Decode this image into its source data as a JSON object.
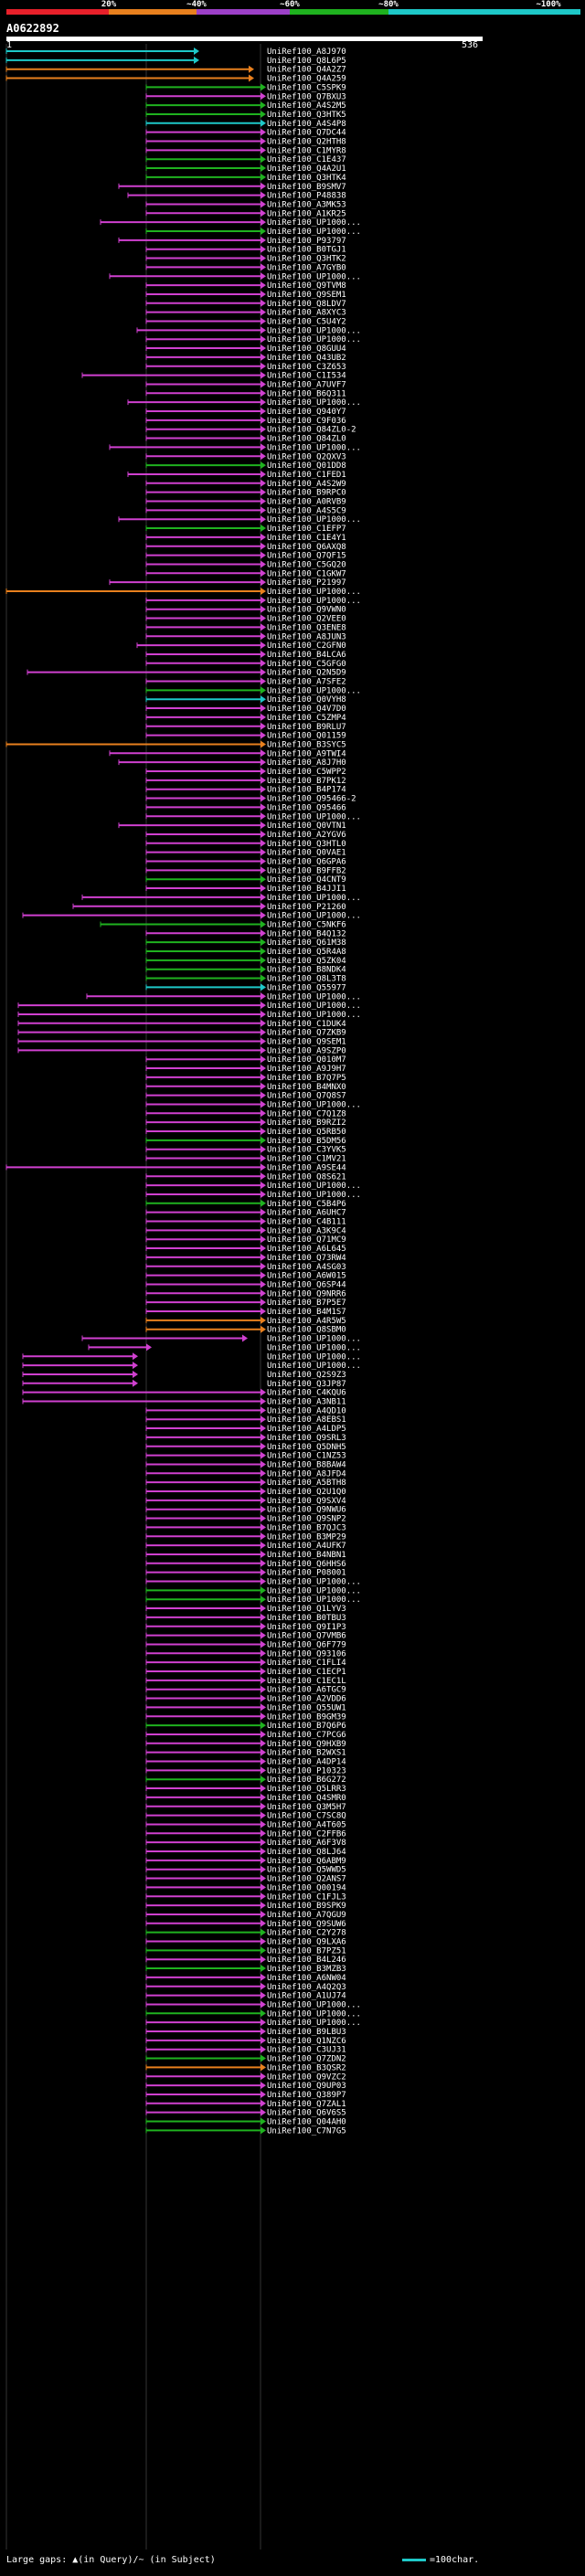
{
  "legend": {
    "labels": [
      "20%",
      "~40%",
      "~60%",
      "~80%",
      "~100%"
    ],
    "colors": [
      "#e8202a",
      "#e8801e",
      "#9d40c8",
      "#1fb21f",
      "#1ec8c8"
    ]
  },
  "query": {
    "name": "A0622892",
    "start": "1",
    "end": "536"
  },
  "hits": [
    {
      "id": "UniRef100_A8J970",
      "color": "#1ec8c8"
    },
    {
      "id": "UniRef100_Q8L6P5",
      "color": "#1ec8c8"
    },
    {
      "id": "UniRef100_Q4A2Z7",
      "color": "#e8801e"
    },
    {
      "id": "UniRef100_Q4A259",
      "color": "#e8801e"
    },
    {
      "id": "UniRef100_C5SPK9",
      "color": "#1fb21f"
    },
    {
      "id": "UniRef100_Q7BXU3",
      "color": "#d040d0"
    },
    {
      "id": "UniRef100_A4S2M5",
      "color": "#1fb21f"
    },
    {
      "id": "UniRef100_Q3HTK5",
      "color": "#1fb21f"
    },
    {
      "id": "UniRef100_A4S4P8",
      "color": "#1ec8c8"
    },
    {
      "id": "UniRef100_Q7DC44",
      "color": "#d040d0"
    },
    {
      "id": "UniRef100_Q2HTH8",
      "color": "#d040d0"
    },
    {
      "id": "UniRef100_C1MYR8",
      "color": "#d040d0"
    },
    {
      "id": "UniRef100_C1E437",
      "color": "#1fb21f"
    },
    {
      "id": "UniRef100_Q4A2U1",
      "color": "#1fb21f"
    },
    {
      "id": "UniRef100_Q3HTK4",
      "color": "#1fb21f"
    },
    {
      "id": "UniRef100_B9SMV7",
      "color": "#d040d0"
    },
    {
      "id": "UniRef100_P48838",
      "color": "#d040d0"
    },
    {
      "id": "UniRef100_A3MK53",
      "color": "#d040d0"
    },
    {
      "id": "UniRef100_A1KR25",
      "color": "#d040d0"
    },
    {
      "id": "UniRef100_UP1000...",
      "color": "#d040d0"
    },
    {
      "id": "UniRef100_UP1000...",
      "color": "#1fb21f"
    },
    {
      "id": "UniRef100_P93797",
      "color": "#d040d0"
    },
    {
      "id": "UniRef100_B0TGJ1",
      "color": "#d040d0"
    },
    {
      "id": "UniRef100_Q3HTK2",
      "color": "#d040d0"
    },
    {
      "id": "UniRef100_A7GYB0",
      "color": "#d040d0"
    },
    {
      "id": "UniRef100_UP1000...",
      "color": "#d040d0"
    },
    {
      "id": "UniRef100_Q9TVM8",
      "color": "#d040d0"
    },
    {
      "id": "UniRef100_Q9SEM1",
      "color": "#d040d0"
    },
    {
      "id": "UniRef100_Q8LDV7",
      "color": "#d040d0"
    },
    {
      "id": "UniRef100_A8XYC3",
      "color": "#d040d0"
    },
    {
      "id": "UniRef100_C5U4Y2",
      "color": "#d040d0"
    },
    {
      "id": "UniRef100_UP1000...",
      "color": "#d040d0"
    },
    {
      "id": "UniRef100_UP1000...",
      "color": "#d040d0"
    },
    {
      "id": "UniRef100_Q8GUU4",
      "color": "#d040d0"
    },
    {
      "id": "UniRef100_Q43UB2",
      "color": "#d040d0"
    },
    {
      "id": "UniRef100_C3Z653",
      "color": "#d040d0"
    },
    {
      "id": "UniRef100_C1I534",
      "color": "#d040d0"
    },
    {
      "id": "UniRef100_A7UVF7",
      "color": "#d040d0"
    },
    {
      "id": "UniRef100_B6Q311",
      "color": "#d040d0"
    },
    {
      "id": "UniRef100_UP1000...",
      "color": "#d040d0"
    },
    {
      "id": "UniRef100_Q940Y7",
      "color": "#d040d0"
    },
    {
      "id": "UniRef100_C9F036",
      "color": "#d040d0"
    },
    {
      "id": "UniRef100_Q84ZL0-2",
      "color": "#d040d0"
    },
    {
      "id": "UniRef100_Q84ZL0",
      "color": "#d040d0"
    },
    {
      "id": "UniRef100_UP1000...",
      "color": "#d040d0"
    },
    {
      "id": "UniRef100_Q2QXV3",
      "color": "#d040d0"
    },
    {
      "id": "UniRef100_Q01DD8",
      "color": "#1fb21f"
    },
    {
      "id": "UniRef100_C1FED1",
      "color": "#d040d0"
    },
    {
      "id": "UniRef100_A4S2W9",
      "color": "#d040d0"
    },
    {
      "id": "UniRef100_B9RPC0",
      "color": "#d040d0"
    },
    {
      "id": "UniRef100_A0RVB9",
      "color": "#d040d0"
    },
    {
      "id": "UniRef100_A4S5C9",
      "color": "#d040d0"
    },
    {
      "id": "UniRef100_UP1000...",
      "color": "#d040d0"
    },
    {
      "id": "UniRef100_C1EFP7",
      "color": "#1fb21f"
    },
    {
      "id": "UniRef100_C1E4Y1",
      "color": "#d040d0"
    },
    {
      "id": "UniRef100_Q6AXQ8",
      "color": "#d040d0"
    },
    {
      "id": "UniRef100_Q7QF15",
      "color": "#d040d0"
    },
    {
      "id": "UniRef100_C5GQ20",
      "color": "#d040d0"
    },
    {
      "id": "UniRef100_C1GKW7",
      "color": "#d040d0"
    },
    {
      "id": "UniRef100_P21997",
      "color": "#d040d0"
    },
    {
      "id": "UniRef100_UP1000...",
      "color": "#e8801e"
    },
    {
      "id": "UniRef100_UP1000...",
      "color": "#d040d0"
    },
    {
      "id": "UniRef100_Q9VWN0",
      "color": "#d040d0"
    },
    {
      "id": "UniRef100_Q2VEE0",
      "color": "#d040d0"
    },
    {
      "id": "UniRef100_Q3ENE8",
      "color": "#d040d0"
    },
    {
      "id": "UniRef100_A8JUN3",
      "color": "#d040d0"
    },
    {
      "id": "UniRef100_C2GFN0",
      "color": "#d040d0"
    },
    {
      "id": "UniRef100_B4LCA6",
      "color": "#d040d0"
    },
    {
      "id": "UniRef100_C5GFG0",
      "color": "#d040d0"
    },
    {
      "id": "UniRef100_Q2N5D9",
      "color": "#d040d0"
    },
    {
      "id": "UniRef100_A7SFE2",
      "color": "#d040d0"
    },
    {
      "id": "UniRef100_UP1000...",
      "color": "#1fb21f"
    },
    {
      "id": "UniRef100_Q0VYH8",
      "color": "#1ec8c8"
    },
    {
      "id": "UniRef100_Q4V7D0",
      "color": "#d040d0"
    },
    {
      "id": "UniRef100_C5ZMP4",
      "color": "#d040d0"
    },
    {
      "id": "UniRef100_B9RLU7",
      "color": "#d040d0"
    },
    {
      "id": "UniRef100_Q01159",
      "color": "#d040d0"
    },
    {
      "id": "UniRef100_B3SYC5",
      "color": "#e8801e"
    },
    {
      "id": "UniRef100_A9TWI4",
      "color": "#d040d0"
    },
    {
      "id": "UniRef100_A8J7H0",
      "color": "#d040d0"
    },
    {
      "id": "UniRef100_C5WPP2",
      "color": "#d040d0"
    },
    {
      "id": "UniRef100_B7PK12",
      "color": "#d040d0"
    },
    {
      "id": "UniRef100_B4P174",
      "color": "#d040d0"
    },
    {
      "id": "UniRef100_Q95466-2",
      "color": "#d040d0"
    },
    {
      "id": "UniRef100_Q95466",
      "color": "#d040d0"
    },
    {
      "id": "UniRef100_UP1000...",
      "color": "#d040d0"
    },
    {
      "id": "UniRef100_Q0VTN1",
      "color": "#d040d0"
    },
    {
      "id": "UniRef100_A2YGV6",
      "color": "#d040d0"
    },
    {
      "id": "UniRef100_Q3HTL0",
      "color": "#d040d0"
    },
    {
      "id": "UniRef100_Q0VAE1",
      "color": "#d040d0"
    },
    {
      "id": "UniRef100_Q6GPA6",
      "color": "#d040d0"
    },
    {
      "id": "UniRef100_B9FFB2",
      "color": "#d040d0"
    },
    {
      "id": "UniRef100_Q4CNT9",
      "color": "#1fb21f"
    },
    {
      "id": "UniRef100_B4JJI1",
      "color": "#d040d0"
    },
    {
      "id": "UniRef100_UP1000...",
      "color": "#d040d0"
    },
    {
      "id": "UniRef100_P21260",
      "color": "#d040d0"
    },
    {
      "id": "UniRef100_UP1000...",
      "color": "#d040d0"
    },
    {
      "id": "UniRef100_C5NKF6",
      "color": "#1fb21f"
    },
    {
      "id": "UniRef100_B4Q132",
      "color": "#d040d0"
    },
    {
      "id": "UniRef100_Q61M38",
      "color": "#1fb21f"
    },
    {
      "id": "UniRef100_Q5R4A8",
      "color": "#1fb21f"
    },
    {
      "id": "UniRef100_Q5ZK04",
      "color": "#1fb21f"
    },
    {
      "id": "UniRef100_B8NDK4",
      "color": "#1fb21f"
    },
    {
      "id": "UniRef100_Q8L3T8",
      "color": "#1fb21f"
    },
    {
      "id": "UniRef100_Q55977",
      "color": "#1ec8c8"
    },
    {
      "id": "UniRef100_UP1000...",
      "color": "#d040d0"
    },
    {
      "id": "UniRef100_UP1000...",
      "color": "#d040d0"
    },
    {
      "id": "UniRef100_UP1000...",
      "color": "#d040d0"
    },
    {
      "id": "UniRef100_C1DUK4",
      "color": "#d040d0"
    },
    {
      "id": "UniRef100_Q7ZKB9",
      "color": "#d040d0"
    },
    {
      "id": "UniRef100_Q9SEM1",
      "color": "#d040d0"
    },
    {
      "id": "UniRef100_A9SZP0",
      "color": "#d040d0"
    },
    {
      "id": "UniRef100_Q010M7",
      "color": "#d040d0"
    },
    {
      "id": "UniRef100_A9J9H7",
      "color": "#d040d0"
    },
    {
      "id": "UniRef100_B7Q7P5",
      "color": "#d040d0"
    },
    {
      "id": "UniRef100_B4MNX0",
      "color": "#d040d0"
    },
    {
      "id": "UniRef100_Q7Q8S7",
      "color": "#d040d0"
    },
    {
      "id": "UniRef100_UP1000...",
      "color": "#d040d0"
    },
    {
      "id": "UniRef100_C7Q1Z8",
      "color": "#d040d0"
    },
    {
      "id": "UniRef100_B9RZI2",
      "color": "#d040d0"
    },
    {
      "id": "UniRef100_Q5RB50",
      "color": "#d040d0"
    },
    {
      "id": "UniRef100_B5DM56",
      "color": "#1fb21f"
    },
    {
      "id": "UniRef100_C3YVK5",
      "color": "#d040d0"
    },
    {
      "id": "UniRef100_C1MV21",
      "color": "#d040d0"
    },
    {
      "id": "UniRef100_A9SE44",
      "color": "#d040d0"
    },
    {
      "id": "UniRef100_Q8S621",
      "color": "#d040d0"
    },
    {
      "id": "UniRef100_UP1000...",
      "color": "#d040d0"
    },
    {
      "id": "UniRef100_UP1000...",
      "color": "#d040d0"
    },
    {
      "id": "UniRef100_C5B4P6",
      "color": "#1fb21f"
    },
    {
      "id": "UniRef100_A6UHC7",
      "color": "#d040d0"
    },
    {
      "id": "UniRef100_C4B111",
      "color": "#d040d0"
    },
    {
      "id": "UniRef100_A3K9C4",
      "color": "#d040d0"
    },
    {
      "id": "UniRef100_Q71MC9",
      "color": "#d040d0"
    },
    {
      "id": "UniRef100_A6L645",
      "color": "#d040d0"
    },
    {
      "id": "UniRef100_Q73RW4",
      "color": "#d040d0"
    },
    {
      "id": "UniRef100_A4SG03",
      "color": "#d040d0"
    },
    {
      "id": "UniRef100_A6W015",
      "color": "#d040d0"
    },
    {
      "id": "UniRef100_Q6SP44",
      "color": "#d040d0"
    },
    {
      "id": "UniRef100_Q9NRR6",
      "color": "#d040d0"
    },
    {
      "id": "UniRef100_B7P5E7",
      "color": "#d040d0"
    },
    {
      "id": "UniRef100_B4M1S7",
      "color": "#d040d0"
    },
    {
      "id": "UniRef100_A4R5W5",
      "color": "#e8801e"
    },
    {
      "id": "UniRef100_Q8SBM0",
      "color": "#e8801e"
    },
    {
      "id": "UniRef100_UP1000...",
      "color": "#d040d0"
    },
    {
      "id": "UniRef100_UP1000...",
      "color": "#d040d0"
    },
    {
      "id": "UniRef100_UP1000...",
      "color": "#d040d0"
    },
    {
      "id": "UniRef100_UP1000...",
      "color": "#d040d0"
    },
    {
      "id": "UniRef100_Q2S9Z3",
      "color": "#d040d0"
    },
    {
      "id": "UniRef100_Q3JP87",
      "color": "#d040d0"
    },
    {
      "id": "UniRef100_C4KQU6",
      "color": "#d040d0"
    },
    {
      "id": "UniRef100_A3NB11",
      "color": "#d040d0"
    },
    {
      "id": "UniRef100_A4QD10",
      "color": "#d040d0"
    },
    {
      "id": "UniRef100_A8EBS1",
      "color": "#d040d0"
    },
    {
      "id": "UniRef100_A4LDP5",
      "color": "#d040d0"
    },
    {
      "id": "UniRef100_Q9SRL3",
      "color": "#d040d0"
    },
    {
      "id": "UniRef100_Q5DNH5",
      "color": "#d040d0"
    },
    {
      "id": "UniRef100_C1NZ53",
      "color": "#d040d0"
    },
    {
      "id": "UniRef100_B8BAW4",
      "color": "#d040d0"
    },
    {
      "id": "UniRef100_A8JFD4",
      "color": "#d040d0"
    },
    {
      "id": "UniRef100_A5BTH8",
      "color": "#d040d0"
    },
    {
      "id": "UniRef100_Q2U1Q0",
      "color": "#d040d0"
    },
    {
      "id": "UniRef100_Q9SXV4",
      "color": "#d040d0"
    },
    {
      "id": "UniRef100_Q9NWU6",
      "color": "#d040d0"
    },
    {
      "id": "UniRef100_Q9SNP2",
      "color": "#d040d0"
    },
    {
      "id": "UniRef100_B7QJC3",
      "color": "#d040d0"
    },
    {
      "id": "UniRef100_B3MP29",
      "color": "#d040d0"
    },
    {
      "id": "UniRef100_A4UFK7",
      "color": "#d040d0"
    },
    {
      "id": "UniRef100_B4NBN1",
      "color": "#d040d0"
    },
    {
      "id": "UniRef100_Q6HHS6",
      "color": "#d040d0"
    },
    {
      "id": "UniRef100_P08001",
      "color": "#d040d0"
    },
    {
      "id": "UniRef100_UP1000...",
      "color": "#d040d0"
    },
    {
      "id": "UniRef100_UP1000...",
      "color": "#1fb21f"
    },
    {
      "id": "UniRef100_UP1000...",
      "color": "#1fb21f"
    },
    {
      "id": "UniRef100_Q1LYV3",
      "color": "#d040d0"
    },
    {
      "id": "UniRef100_B0TBU3",
      "color": "#d040d0"
    },
    {
      "id": "UniRef100_Q9I1P3",
      "color": "#d040d0"
    },
    {
      "id": "UniRef100_Q7VMB6",
      "color": "#d040d0"
    },
    {
      "id": "UniRef100_Q6F779",
      "color": "#d040d0"
    },
    {
      "id": "UniRef100_Q93106",
      "color": "#d040d0"
    },
    {
      "id": "UniRef100_C1FLI4",
      "color": "#d040d0"
    },
    {
      "id": "UniRef100_C1ECP1",
      "color": "#d040d0"
    },
    {
      "id": "UniRef100_C1EC1L",
      "color": "#d040d0"
    },
    {
      "id": "UniRef100_A6TGC9",
      "color": "#d040d0"
    },
    {
      "id": "UniRef100_A2VDD6",
      "color": "#d040d0"
    },
    {
      "id": "UniRef100_Q55UW1",
      "color": "#d040d0"
    },
    {
      "id": "UniRef100_B9GM39",
      "color": "#d040d0"
    },
    {
      "id": "UniRef100_B7Q6P6",
      "color": "#1fb21f"
    },
    {
      "id": "UniRef100_C7PCG6",
      "color": "#d040d0"
    },
    {
      "id": "UniRef100_Q9HXB9",
      "color": "#d040d0"
    },
    {
      "id": "UniRef100_B2WXS1",
      "color": "#d040d0"
    },
    {
      "id": "UniRef100_A4DP14",
      "color": "#d040d0"
    },
    {
      "id": "UniRef100_P10323",
      "color": "#d040d0"
    },
    {
      "id": "UniRef100_B6G272",
      "color": "#1fb21f"
    },
    {
      "id": "UniRef100_Q5LRR3",
      "color": "#d040d0"
    },
    {
      "id": "UniRef100_Q4SMR0",
      "color": "#d040d0"
    },
    {
      "id": "UniRef100_Q3M5H7",
      "color": "#d040d0"
    },
    {
      "id": "UniRef100_C7SC8Q",
      "color": "#d040d0"
    },
    {
      "id": "UniRef100_A4T605",
      "color": "#d040d0"
    },
    {
      "id": "UniRef100_C2FFB6",
      "color": "#d040d0"
    },
    {
      "id": "UniRef100_A6F3V8",
      "color": "#d040d0"
    },
    {
      "id": "UniRef100_Q8LJ64",
      "color": "#d040d0"
    },
    {
      "id": "UniRef100_Q6ABM9",
      "color": "#d040d0"
    },
    {
      "id": "UniRef100_Q5WWD5",
      "color": "#d040d0"
    },
    {
      "id": "UniRef100_Q2ANS7",
      "color": "#d040d0"
    },
    {
      "id": "UniRef100_Q00194",
      "color": "#d040d0"
    },
    {
      "id": "UniRef100_C1FJL3",
      "color": "#d040d0"
    },
    {
      "id": "UniRef100_B9SPK9",
      "color": "#d040d0"
    },
    {
      "id": "UniRef100_A7QGU9",
      "color": "#d040d0"
    },
    {
      "id": "UniRef100_Q9SUW6",
      "color": "#d040d0"
    },
    {
      "id": "UniRef100_C2Y278",
      "color": "#1fb21f"
    },
    {
      "id": "UniRef100_Q9LXA6",
      "color": "#d040d0"
    },
    {
      "id": "UniRef100_B7PZ51",
      "color": "#1fb21f"
    },
    {
      "id": "UniRef100_B4L246",
      "color": "#d040d0"
    },
    {
      "id": "UniRef100_B3MZB3",
      "color": "#1fb21f"
    },
    {
      "id": "UniRef100_A6NW04",
      "color": "#d040d0"
    },
    {
      "id": "UniRef100_A4Q2Q3",
      "color": "#d040d0"
    },
    {
      "id": "UniRef100_A1UJ74",
      "color": "#d040d0"
    },
    {
      "id": "UniRef100_UP1000...",
      "color": "#d040d0"
    },
    {
      "id": "UniRef100_UP1000...",
      "color": "#1fb21f"
    },
    {
      "id": "UniRef100_UP1000...",
      "color": "#d040d0"
    },
    {
      "id": "UniRef100_B9LBU3",
      "color": "#d040d0"
    },
    {
      "id": "UniRef100_Q1NZC6",
      "color": "#d040d0"
    },
    {
      "id": "UniRef100_C3UJ31",
      "color": "#d040d0"
    },
    {
      "id": "UniRef100_Q7ZDN2",
      "color": "#1fb21f"
    },
    {
      "id": "UniRef100_B3QSR2",
      "color": "#e8801e"
    },
    {
      "id": "UniRef100_Q9VZC2",
      "color": "#d040d0"
    },
    {
      "id": "UniRef100_Q9UP03",
      "color": "#d040d0"
    },
    {
      "id": "UniRef100_Q389P7",
      "color": "#d040d0"
    },
    {
      "id": "UniRef100_Q7ZAL1",
      "color": "#d040d0"
    },
    {
      "id": "UniRef100_Q6V6S5",
      "color": "#d040d0"
    },
    {
      "id": "UniRef100_Q04AH0",
      "color": "#1fb21f"
    },
    {
      "id": "UniRef100_C7N7G5",
      "color": "#1fb21f"
    }
  ],
  "footer": {
    "left": "Large gaps: ▲(in Query)/~ (in Subject)",
    "right": "=100char."
  }
}
